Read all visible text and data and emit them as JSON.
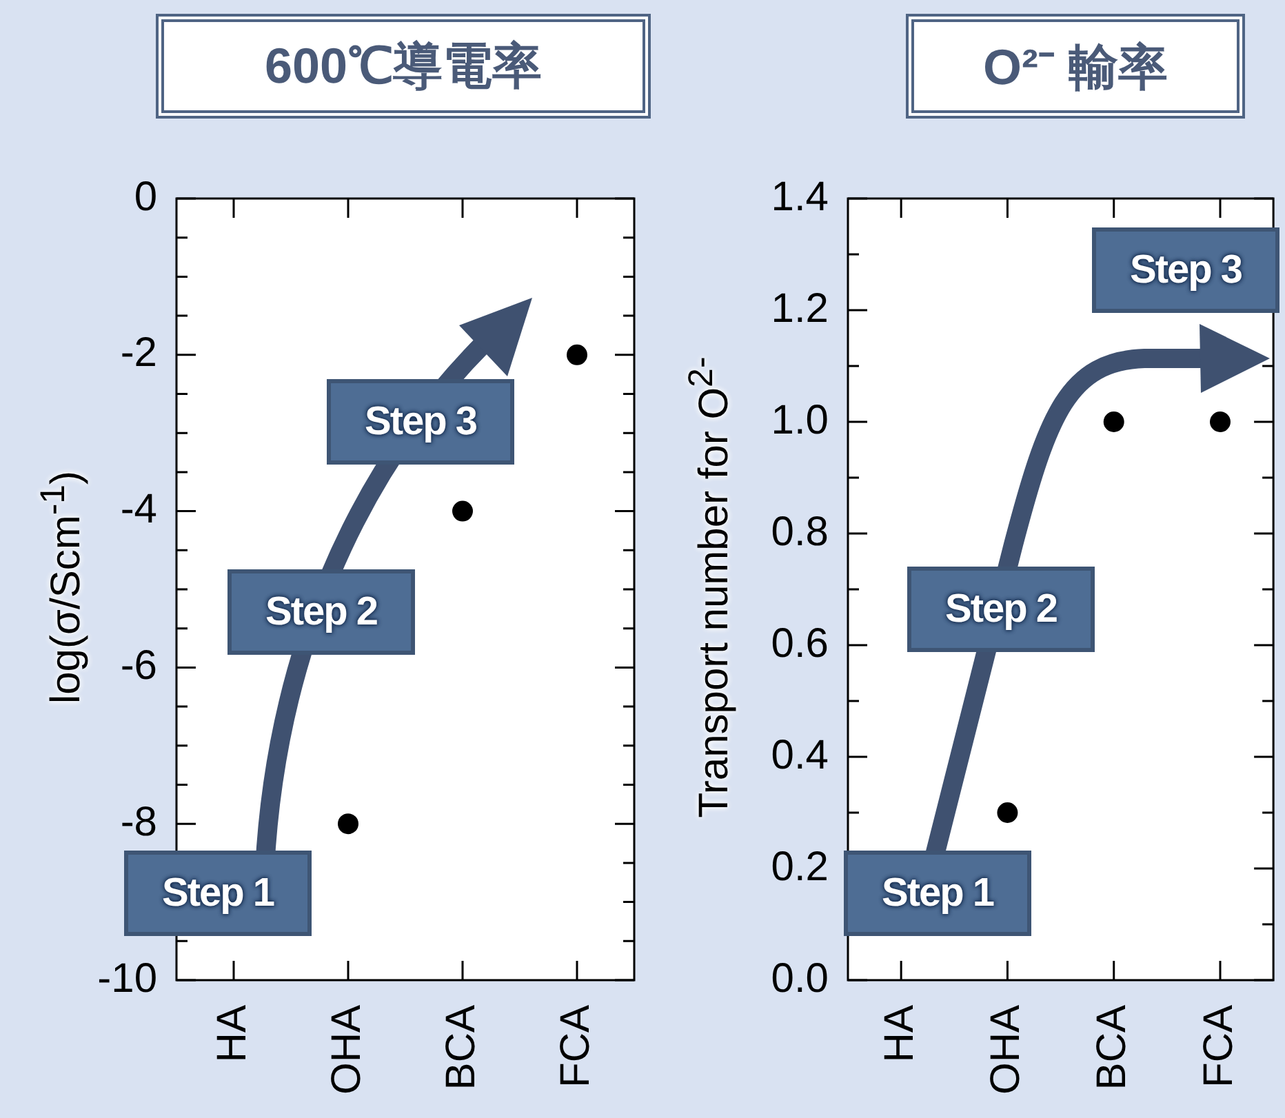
{
  "chart_data": [
    {
      "type": "scatter",
      "title": "600℃導電率",
      "ylabel": "log(σ/Scm$^{-1}$)",
      "categories": [
        "HA",
        "OHA",
        "BCA",
        "FCA"
      ],
      "values": [
        null,
        -8,
        -4,
        -2
      ],
      "color": "#000000",
      "marker": "circle",
      "ylim": [
        -10,
        0
      ],
      "yticks": [
        -10,
        {
          "value": -9.5,
          "label": null
        },
        {
          "value": -9,
          "label": null
        },
        {
          "value": -8.5,
          "label": null
        },
        -8,
        {
          "value": -7.5,
          "label": null
        },
        {
          "value": -7,
          "label": null
        },
        {
          "value": -6.5,
          "label": null
        },
        -6,
        {
          "value": -5.5,
          "label": null
        },
        {
          "value": -5,
          "label": null
        },
        {
          "value": -4.5,
          "label": null
        },
        -4,
        {
          "value": -3.5,
          "label": null
        },
        {
          "value": -3,
          "label": null
        },
        {
          "value": -2.5,
          "label": null
        },
        -2,
        {
          "value": -1.5,
          "label": null
        },
        {
          "value": -1,
          "label": null
        },
        {
          "value": -0.5,
          "label": null
        },
        0
      ],
      "annotations": [
        "Step 1",
        "Step 2",
        "Step 3"
      ]
    },
    {
      "type": "scatter",
      "title": "O²⁻ 輸率",
      "ylabel": "Transport number for O$^{2-}$",
      "categories": [
        "HA",
        "OHA",
        "BCA",
        "FCA"
      ],
      "values": [
        null,
        0.3,
        1.0,
        1.0
      ],
      "color": "#000000",
      "marker": "circle",
      "ylim": [
        0,
        1.4
      ],
      "yticks": [
        {
          "value": 0,
          "label": "0.0"
        },
        {
          "value": 0.1,
          "label": null
        },
        {
          "value": 0.2,
          "label": "0.2"
        },
        {
          "value": 0.3,
          "label": null
        },
        {
          "value": 0.4,
          "label": "0.4"
        },
        {
          "value": 0.5,
          "label": null
        },
        {
          "value": 0.6,
          "label": "0.6"
        },
        {
          "value": 0.7,
          "label": null
        },
        {
          "value": 0.8,
          "label": "0.8"
        },
        {
          "value": 0.9,
          "label": null
        },
        {
          "value": 1.0,
          "label": "1.0"
        },
        {
          "value": 1.1,
          "label": null
        },
        {
          "value": 1.2,
          "label": "1.2"
        },
        {
          "value": 1.3,
          "label": null
        },
        {
          "value": 1.4,
          "label": "1.4"
        }
      ],
      "annotations": [
        "Step 1",
        "Step 2",
        "Step 3"
      ]
    }
  ]
}
